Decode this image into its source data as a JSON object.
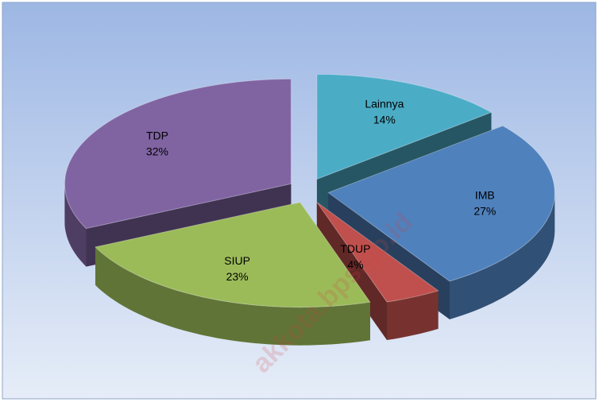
{
  "chart_data": {
    "type": "pie3d",
    "categories": [
      "Lainnya",
      "IMB",
      "TDUP",
      "SIUP",
      "TDP"
    ],
    "values": [
      14,
      27,
      4,
      23,
      32
    ],
    "value_labels": [
      "14%",
      "27%",
      "4%",
      "23%",
      "32%"
    ],
    "colors": [
      "#4bacc6",
      "#4f81bd",
      "#c0504d",
      "#9bbb59",
      "#8064a2"
    ],
    "watermark": "akkota.bps.go.id"
  }
}
